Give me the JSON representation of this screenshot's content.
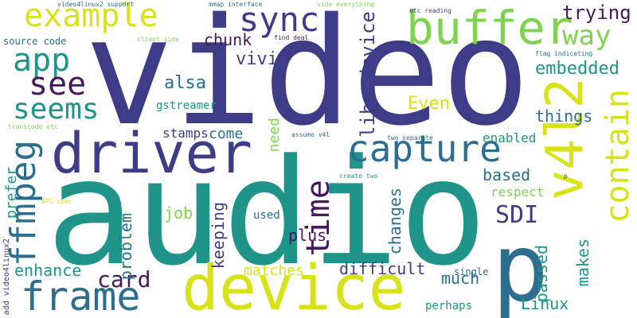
{
  "colors": {
    "background": "#ffffff",
    "indigo": "#3e3c87",
    "dark_purple": "#48185e",
    "teal": "#1f9489",
    "blue_teal": "#2d6e8e",
    "green": "#45bf6f",
    "light_green": "#7fd34e",
    "yellow": "#d7e219"
  },
  "words": {
    "video": "video",
    "audio": "audio",
    "v4l2": "v4l2",
    "p": "p",
    "device": "device",
    "driver": "driver",
    "capture": "capture",
    "buffer": "buffer",
    "frame": "frame",
    "example": "example",
    "sync": "sync",
    "contain": "contain",
    "ffmpeg": "ffmpeg",
    "seems": "seems",
    "app": "app",
    "time": "time",
    "see": "see",
    "way": "way",
    "card": "card",
    "sdi": "SDI",
    "libavdevice": "libavdevice",
    "trying": "trying",
    "embedded": "embedded",
    "alsa": "alsa",
    "vivi": "vivi",
    "even": "Even",
    "chunk": "chunk",
    "things": "things",
    "enhance": "enhance",
    "prefer": "prefer",
    "keeping": "keeping",
    "difficult": "difficult",
    "plus": "plus",
    "changes": "changes",
    "much": "much",
    "based": "based",
    "job": "job",
    "problem": "problem",
    "makes": "makes",
    "passed": "passed",
    "linux": "Linux",
    "matches": "matches",
    "come": "come",
    "stamps": "stamps",
    "need": "need",
    "enabled": "enabled",
    "respect": "respect",
    "gstreamer": "gstreamer",
    "used": "used",
    "perhaps": "perhaps",
    "source_code": "source code",
    "single": "single",
    "video4linux2_support": "video4linux2 support",
    "mmap_interface": "mmap interface",
    "side_everything": "side everything",
    "etc_reading": "etc reading",
    "client_side": "client side",
    "find_deal": "find deal",
    "flag_indicating": "flag indicating",
    "transcode_etc": "transcode etc",
    "assume_v4l": "assume v4l",
    "two_separate": "two separate",
    "create_two": "create two",
    "api_spec": "API spec",
    "add_video4linux2": "add video4linux2",
    "p_small": "p"
  }
}
